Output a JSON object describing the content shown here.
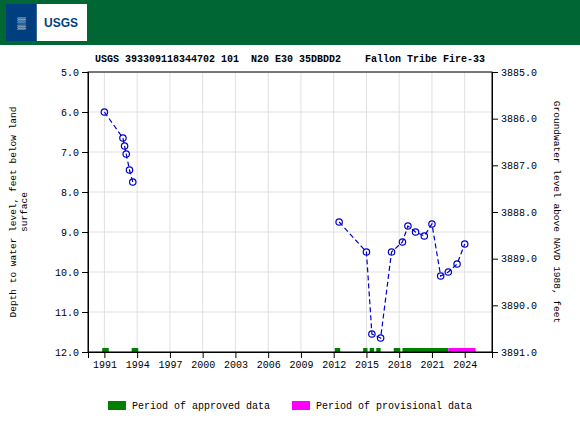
{
  "chart_data": {
    "type": "line",
    "title": "USGS 393309118344702 101  N20 E30 35DBDD2    Fallon Tribe Fire-33",
    "y_label": "Depth to water level, feet below land\nsurface",
    "y2_label": "Groundwater level above NAVD 1988, feet",
    "x": [
      1991.0,
      1992.7,
      1992.85,
      1993.0,
      1993.3,
      1993.6,
      null,
      2012.5,
      2015.0,
      2015.5,
      2016.3,
      2017.3,
      2018.3,
      2018.8,
      2019.5,
      2020.3,
      2021.0,
      2021.8,
      2022.5,
      2023.3,
      2024.0
    ],
    "series": [
      {
        "values": [
          6.0,
          6.65,
          6.85,
          7.05,
          7.45,
          7.75,
          null,
          8.75,
          9.5,
          11.55,
          11.65,
          9.5,
          9.25,
          8.85,
          9.0,
          9.1,
          8.8,
          10.1,
          10.0,
          9.8,
          9.3
        ],
        "color": "#0000cc",
        "line_style": "dashed",
        "marker": "circle"
      }
    ],
    "periods": [
      {
        "name": "Period of approved data",
        "color": "#008000",
        "y": 12.0,
        "ranges": [
          [
            1990.8,
            1991.4
          ],
          [
            1993.5,
            1994.1
          ],
          [
            2012.1,
            2012.6
          ],
          [
            2014.7,
            2015.1
          ],
          [
            2015.3,
            2015.7
          ],
          [
            2015.9,
            2016.3
          ],
          [
            2017.5,
            2018.1
          ],
          [
            2018.3,
            2022.5
          ]
        ]
      },
      {
        "name": "Period of provisional data",
        "color": "#ff00ff",
        "y": 12.0,
        "ranges": [
          [
            2022.5,
            2025.0
          ]
        ]
      }
    ],
    "xlim": [
      1989.5,
      2026.5
    ],
    "xticks": [
      1991,
      1994,
      1997,
      2000,
      2003,
      2006,
      2009,
      2012,
      2015,
      2018,
      2021,
      2024
    ],
    "ylim": [
      12.0,
      5.0
    ],
    "yticks": [
      {
        "value": 5.0,
        "label": "5.0"
      },
      {
        "value": 6.0,
        "label": "6.0"
      },
      {
        "value": 7.0,
        "label": "7.0"
      },
      {
        "value": 8.0,
        "label": "8.0"
      },
      {
        "value": 9.0,
        "label": "9.0"
      },
      {
        "value": 10.0,
        "label": "10.0"
      },
      {
        "value": 11.0,
        "label": "11.0"
      },
      {
        "value": 12.0,
        "label": "12.0"
      }
    ],
    "y2lim": [
      3891.0,
      3885.0
    ],
    "y2ticks": [
      {
        "value": 3891.0,
        "label": "3891.0"
      },
      {
        "value": 3890.0,
        "label": "3890.0"
      },
      {
        "value": 3889.0,
        "label": "3889.0"
      },
      {
        "value": 3888.0,
        "label": "3888.0"
      },
      {
        "value": 3887.0,
        "label": "3887.0"
      },
      {
        "value": 3886.0,
        "label": "3886.0"
      },
      {
        "value": 3885.0,
        "label": "3885.0"
      }
    ],
    "grid": true,
    "legend": "bottom",
    "header": {
      "color": "#006633",
      "annotations": [
        "▒",
        "USGS"
      ]
    }
  }
}
